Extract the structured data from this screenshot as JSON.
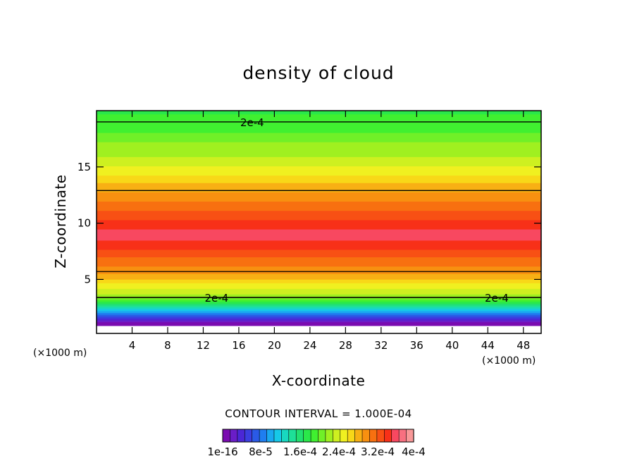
{
  "chart_data": {
    "type": "heatmap",
    "title": "density of cloud",
    "xlabel": "X-coordinate",
    "ylabel": "Z-coordinate",
    "x_unit_left": "(×1000 m)",
    "x_unit_right": "(×1000 m)",
    "xlim": [
      0,
      50
    ],
    "ylim": [
      0.2,
      20
    ],
    "x_ticks": [
      4,
      8,
      12,
      16,
      20,
      24,
      28,
      32,
      36,
      40,
      44,
      48
    ],
    "y_ticks": [
      5,
      10,
      15
    ],
    "profile_z": [
      0.2,
      0.8,
      1.2,
      1.6,
      2.0,
      2.4,
      2.8,
      3.2,
      3.6,
      4.5,
      5.5,
      6.5,
      7.5,
      8.5,
      9.5,
      10.5,
      11.5,
      12.5,
      13.0,
      14.0,
      15.0,
      16.0,
      17.0,
      18.0,
      19.0,
      20.0
    ],
    "profile_value": [
      0.0,
      0.0,
      1e-05,
      4e-05,
      8e-05,
      0.00013,
      0.00017,
      0.0002,
      0.00023,
      0.00026,
      0.0003,
      0.00032,
      0.00034,
      0.00036,
      0.00036,
      0.00034,
      0.00032,
      0.0003,
      0.00029,
      0.00027,
      0.00025,
      0.00023,
      0.00022,
      0.0002,
      0.00019,
      0.00018
    ],
    "contour_lines": [
      {
        "z": 19.0,
        "label": "2e-4"
      },
      {
        "z": 12.9
      },
      {
        "z": 5.7
      },
      {
        "z": 3.4,
        "label": "2e-4"
      },
      {
        "z": 3.4,
        "label": "2e-4"
      }
    ],
    "contour_interval_text": "CONTOUR INTERVAL = 1.000E-04",
    "colorbar": {
      "colors": [
        "#7a0bb0",
        "#6a1dc8",
        "#4b27d6",
        "#3b3ee0",
        "#2a5ae6",
        "#1f7ef0",
        "#1aa8f0",
        "#16c8e8",
        "#18d8c0",
        "#1ee098",
        "#22e070",
        "#2ae84a",
        "#40f030",
        "#70f028",
        "#a0f020",
        "#cef020",
        "#f0f020",
        "#f8d818",
        "#f8b014",
        "#f89010",
        "#f87010",
        "#f85014",
        "#f83018",
        "#f84860",
        "#f87080",
        "#f89898"
      ],
      "labels": [
        "1e-16",
        "8e-5",
        "1.6e-4",
        "2.4e-4",
        "3.2e-4",
        "4e-4"
      ]
    }
  }
}
